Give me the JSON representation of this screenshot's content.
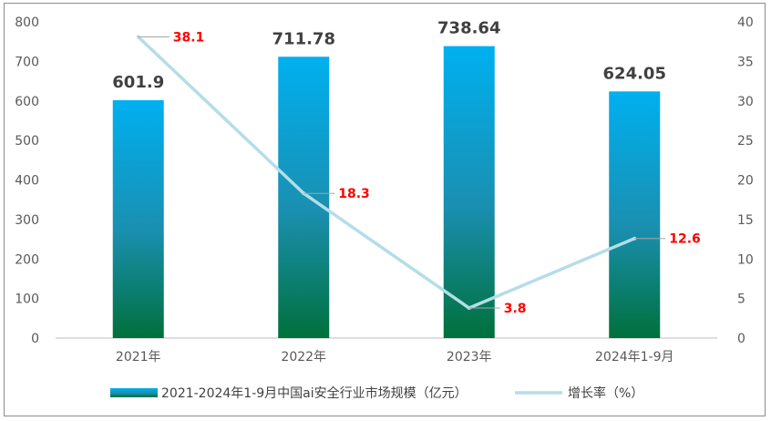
{
  "chart_data": {
    "type": "bar+line",
    "categories": [
      "2021年",
      "2022年",
      "2023年",
      "2024年1-9月"
    ],
    "series": [
      {
        "name": "2021-2024年1-9月中国ai安全行业市场规模（亿元）",
        "type": "bar",
        "axis": "left",
        "values": [
          601.9,
          711.78,
          738.64,
          624.05
        ],
        "labels": [
          "601.9",
          "711.78",
          "738.64",
          "624.05"
        ]
      },
      {
        "name": "增长率（%）",
        "type": "line",
        "axis": "right",
        "values": [
          38.1,
          18.3,
          3.8,
          12.6
        ],
        "labels": [
          "38.1",
          "18.3",
          "3.8",
          "12.6"
        ]
      }
    ],
    "y_left": {
      "min": 0,
      "max": 800,
      "ticks": [
        "0",
        "100",
        "200",
        "300",
        "400",
        "500",
        "600",
        "700",
        "800"
      ]
    },
    "y_right": {
      "min": 0,
      "max": 40,
      "ticks": [
        "0",
        "5",
        "10",
        "15",
        "20",
        "25",
        "30",
        "35",
        "40"
      ]
    },
    "grid": false,
    "legend_position": "bottom",
    "colors": {
      "bar_top": "#00b0f0",
      "bar_bottom": "#00703c",
      "line": "#b4dde8",
      "rate_label": "#ff0000",
      "axis_text": "#595959"
    }
  }
}
